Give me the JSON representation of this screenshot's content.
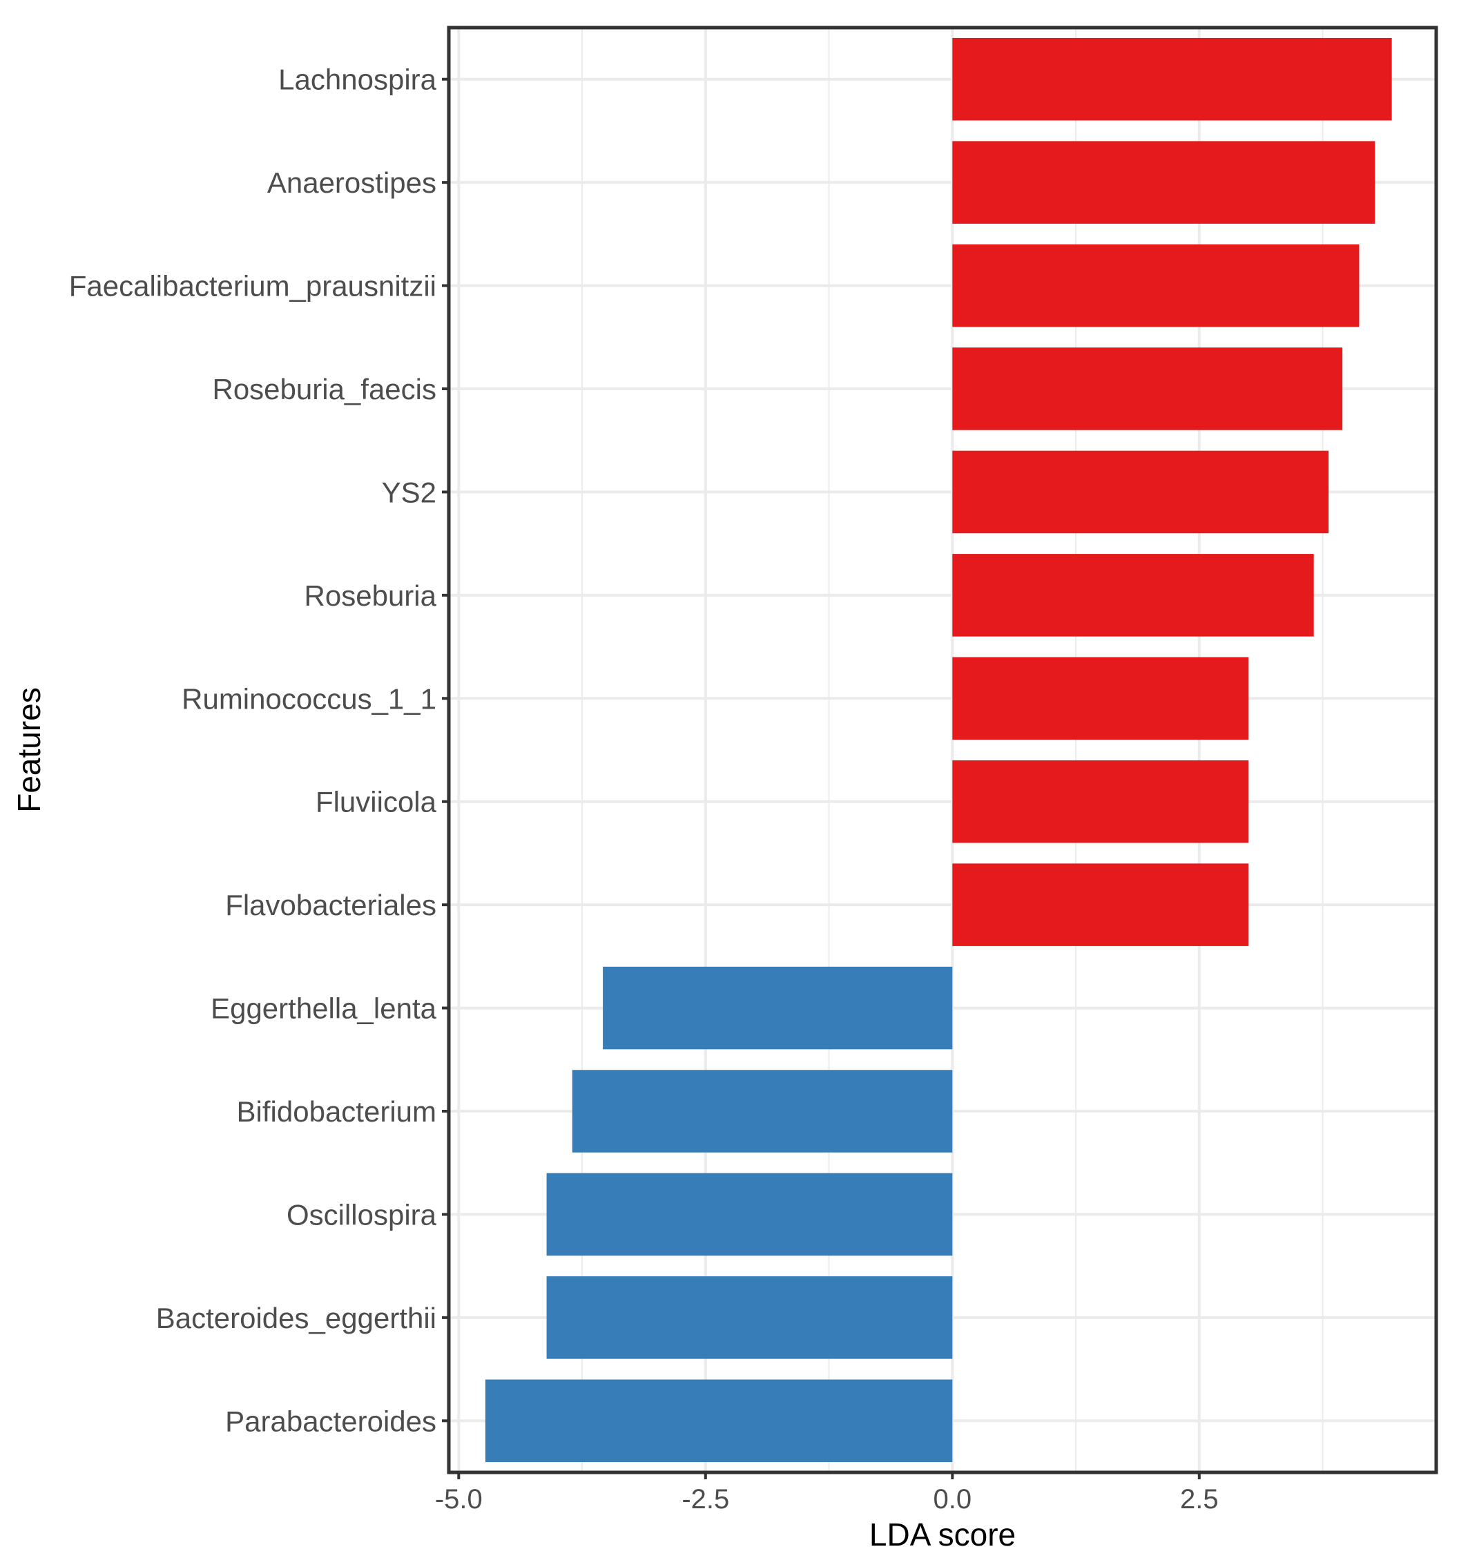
{
  "chart_data": {
    "type": "bar",
    "orientation": "horizontal",
    "title": "",
    "xlabel": "LDA score",
    "ylabel": "Features",
    "xlim": [
      -5.1,
      4.9
    ],
    "x_ticks": [
      -5.0,
      -2.5,
      0.0,
      2.5
    ],
    "x_tick_labels": [
      "-5.0",
      "-2.5",
      "0.0",
      "2.5"
    ],
    "grid": true,
    "legend": "none",
    "categories": [
      "Lachnospira",
      "Anaerostipes",
      "Faecalibacterium_prausnitzii",
      "Roseburia_faecis",
      "YS2",
      "Roseburia",
      "Ruminococcus_1_1",
      "Fluviicola",
      "Flavobacteriales",
      "Eggerthella_lenta",
      "Bifidobacterium",
      "Oscillospira",
      "Bacteroides_eggerthii",
      "Parabacteroides"
    ],
    "values": [
      4.45,
      4.28,
      4.12,
      3.95,
      3.81,
      3.66,
      3.0,
      3.0,
      3.0,
      -3.54,
      -3.85,
      -4.11,
      -4.11,
      -4.73
    ],
    "colors": {
      "positive": "#e41a1c",
      "negative": "#377eb8"
    }
  }
}
